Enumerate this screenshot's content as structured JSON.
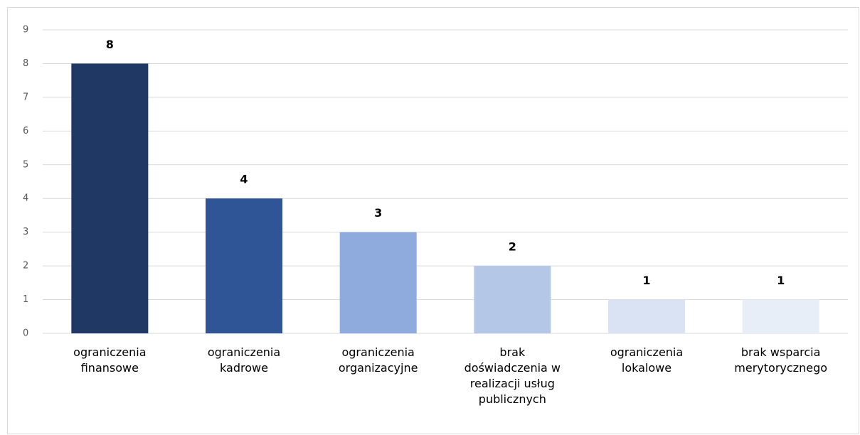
{
  "chart_data": {
    "type": "bar",
    "categories": [
      "ograniczenia finansowe",
      "ograniczenia kadrowe",
      "ograniczenia organizacyjne",
      "brak doświadczenia w realizacji usług publicznych",
      "ograniczenia lokalowe",
      "brak wsparcia merytorycznego"
    ],
    "values": [
      8,
      4,
      3,
      2,
      1,
      1
    ],
    "colors": [
      "#203864",
      "#2f5597",
      "#8faadc",
      "#b4c7e7",
      "#dae3f3",
      "#e8eef8"
    ],
    "ylim": [
      0,
      9
    ],
    "yticks": [
      0,
      1,
      2,
      3,
      4,
      5,
      6,
      7,
      8,
      9
    ],
    "grid": true
  }
}
